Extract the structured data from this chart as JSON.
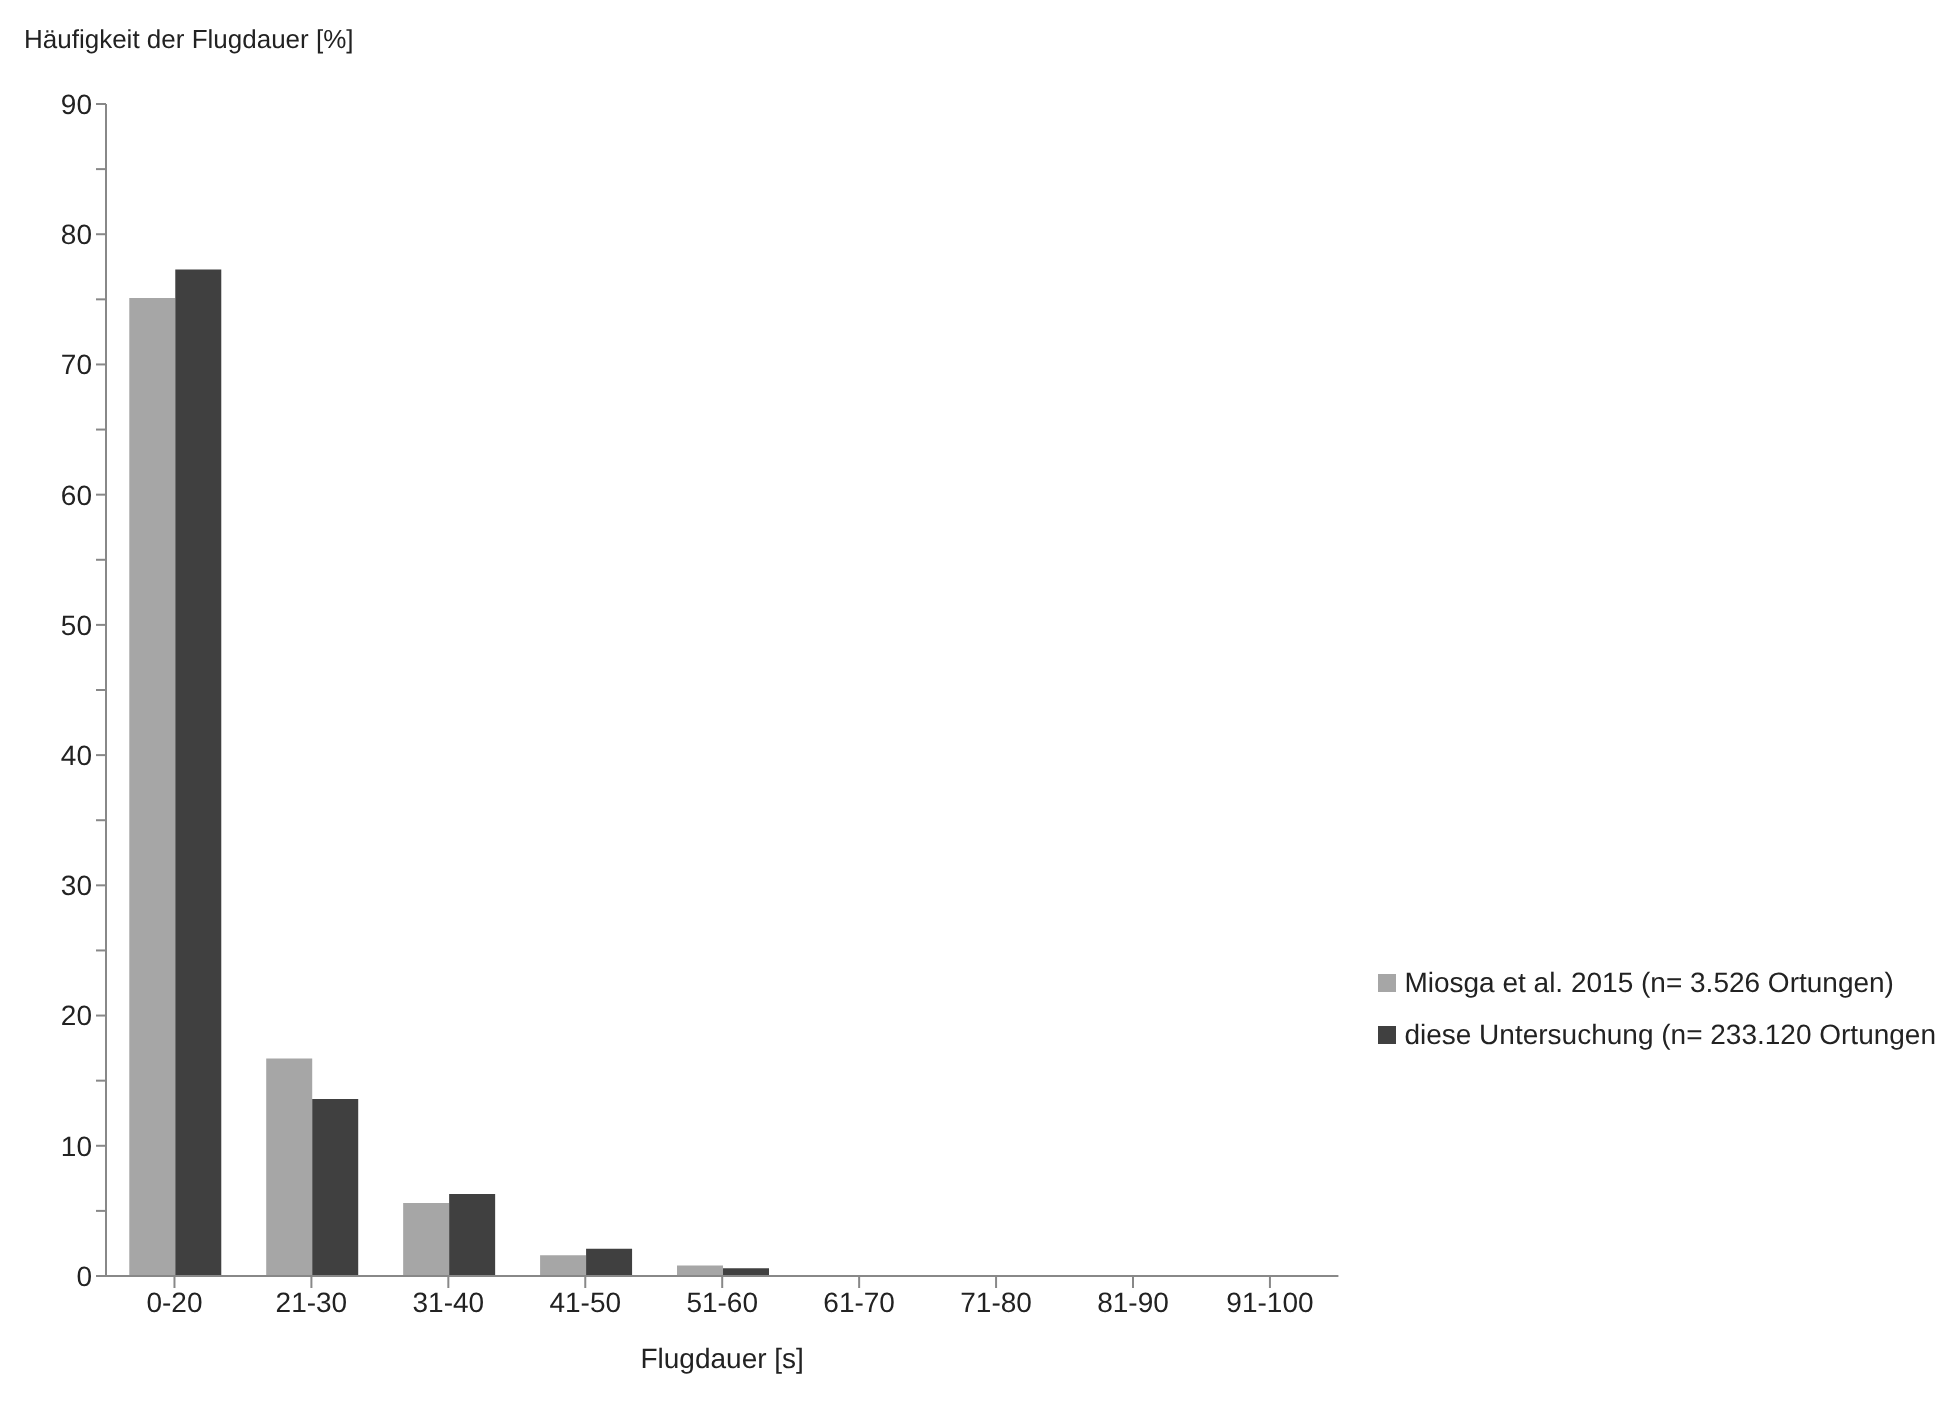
{
  "chart_data": {
    "type": "bar",
    "ylabel": "Häufigkeit der Flugdauer [%]",
    "xlabel": "Flugdauer [s]",
    "categories": [
      "0-20",
      "21-30",
      "31-40",
      "41-50",
      "51-60",
      "61-70",
      "71-80",
      "81-90",
      "91-100"
    ],
    "series": [
      {
        "name": "Miosga et al. 2015 (n= 3.526 Ortungen)",
        "color": "#a6a6a6",
        "values": [
          75.1,
          16.7,
          5.6,
          1.6,
          0.8,
          0,
          0,
          0,
          0
        ]
      },
      {
        "name": "diese Untersuchung (n= 233.120 Ortungen",
        "color": "#404040",
        "values": [
          77.3,
          13.6,
          6.3,
          2.1,
          0.6,
          0,
          0,
          0,
          0
        ]
      }
    ],
    "ylim": [
      0,
      90
    ],
    "yticks": [
      0,
      {
        "value": 5,
        "label": null
      },
      10,
      {
        "value": 15,
        "label": null
      },
      20,
      {
        "value": 25,
        "label": null
      },
      30,
      {
        "value": 35,
        "label": null
      },
      40,
      {
        "value": 45,
        "label": null
      },
      50,
      {
        "value": 55,
        "label": null
      },
      60,
      {
        "value": 65,
        "label": null
      },
      70,
      {
        "value": 75,
        "label": null
      },
      80,
      {
        "value": 85,
        "label": null
      },
      90
    ],
    "grid": false,
    "legend": "right"
  }
}
